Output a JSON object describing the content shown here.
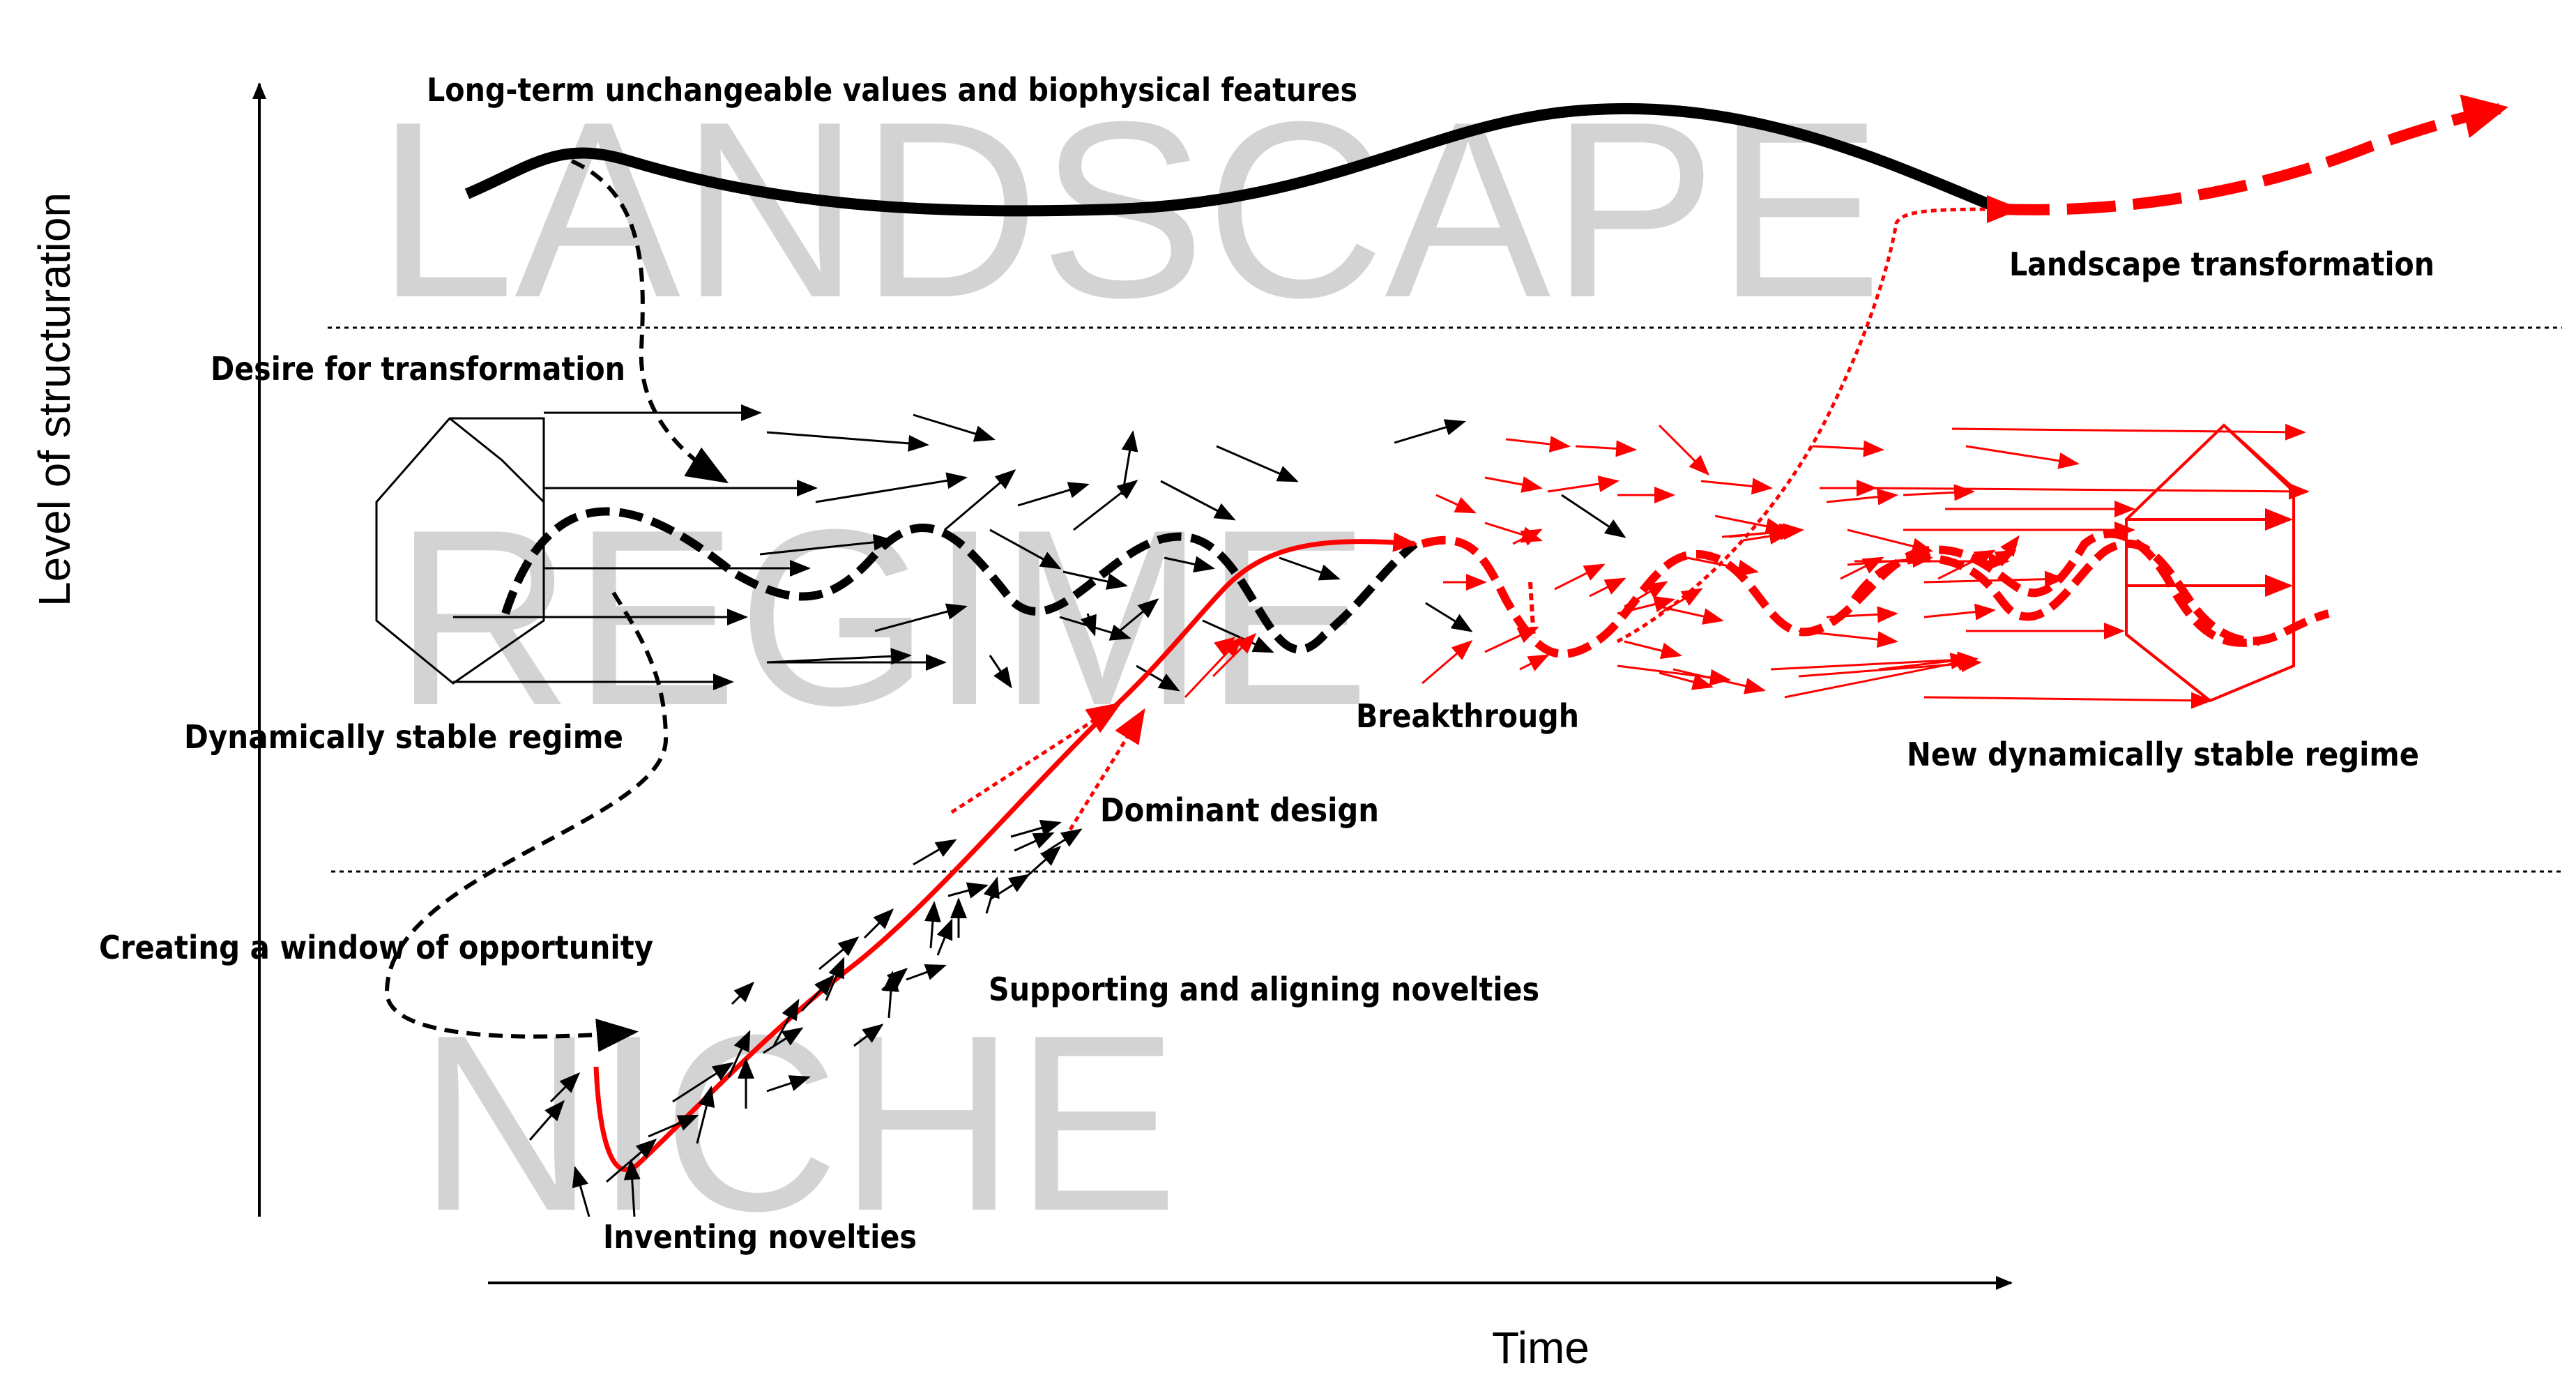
{
  "background_words": {
    "landscape": "LANDSCAPE",
    "regime": "REGIME",
    "niche": "NICHE"
  },
  "labels": {
    "long_term": "Long-term unchangeable values and biophysical features",
    "desire": "Desire for transformation",
    "landscape_transformation": "Landscape transformation",
    "dynamically_stable": "Dynamically  stable regime",
    "breakthrough": "Breakthrough",
    "new_regime": "New dynamically stable regime",
    "dominant_design": "Dominant design",
    "window": "Creating a window of opportunity",
    "supporting": "Supporting and aligning novelties",
    "inventing": "Inventing novelties"
  },
  "axes": {
    "y_label": "Level of structuration",
    "x_label": "Time"
  },
  "colors": {
    "old_system": "#000000",
    "new_system": "#ff0000",
    "watermark": "#d3d3d3"
  }
}
